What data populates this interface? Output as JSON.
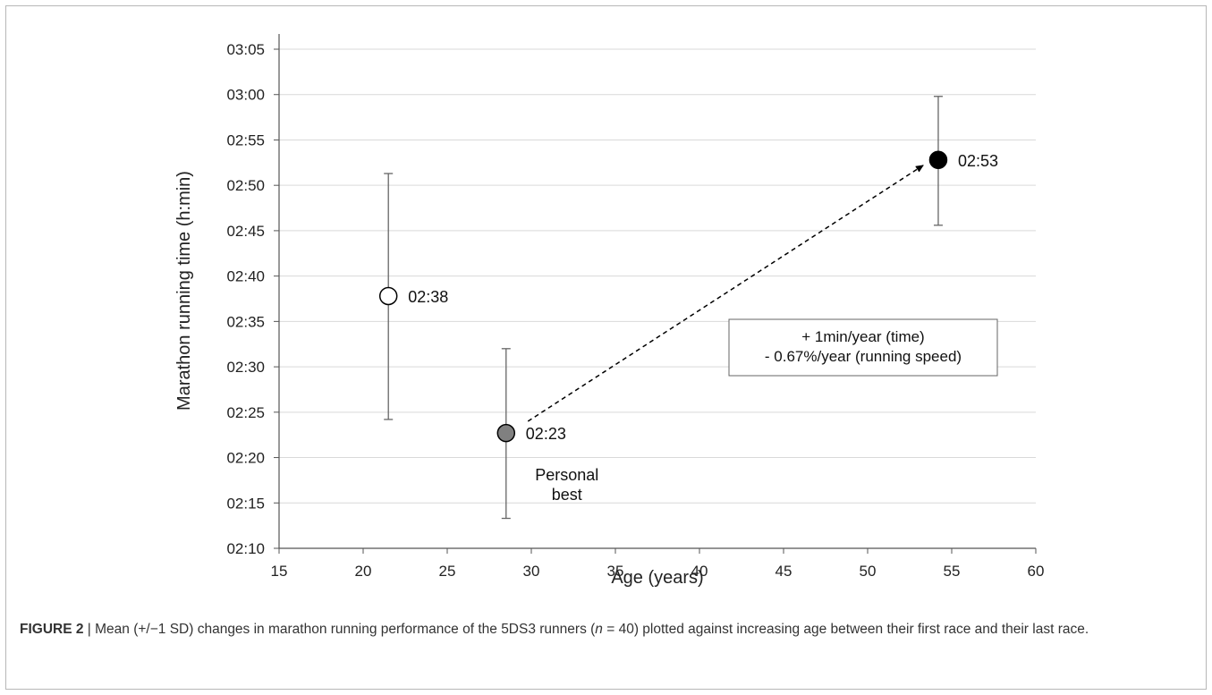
{
  "chart_data": {
    "type": "scatter",
    "title": "",
    "xlabel": "Age (years)",
    "ylabel": "Marathon running time (h:min)",
    "xlim": [
      15,
      60
    ],
    "ylim": [
      "02:10",
      "03:05"
    ],
    "x_ticks": [
      "15",
      "20",
      "25",
      "30",
      "35",
      "40",
      "45",
      "50",
      "55",
      "60"
    ],
    "y_ticks": [
      "02:10",
      "02:15",
      "02:20",
      "02:25",
      "02:30",
      "02:35",
      "02:40",
      "02:45",
      "02:50",
      "02:55",
      "03:00",
      "03:05"
    ],
    "grid": "horizontal",
    "points": [
      {
        "x": 21.5,
        "y": "02:37.8",
        "sd_low": "02:24.2",
        "sd_high": "02:51.3",
        "label": "02:38",
        "fill": "#ffffff"
      },
      {
        "x": 28.5,
        "y": "02:22.7",
        "sd_low": "02:13.3",
        "sd_high": "02:32.0",
        "label": "02:23",
        "fill": "#808080",
        "annotation": [
          "Personal",
          "best"
        ]
      },
      {
        "x": 54.2,
        "y": "02:52.8",
        "sd_low": "02:45.6",
        "sd_high": "02:59.8",
        "label": "02:53",
        "fill": "#000000"
      }
    ],
    "trend_arrow": {
      "from": {
        "x": 29.8,
        "y": "02:24.0"
      },
      "to": {
        "x": 53.3,
        "y": "02:52.2"
      }
    },
    "annotation_box": [
      "+ 1min/year (time)",
      "- 0.67%/year (running speed)"
    ]
  },
  "caption": {
    "label": "FIGURE 2",
    "sep": " | ",
    "text_before_n": " Mean (+/−1 SD) changes in marathon running performance of the 5DS3 runners (",
    "n_symbol": "n",
    "text_after_n": " = 40) plotted against increasing age between their first race and their last race."
  }
}
